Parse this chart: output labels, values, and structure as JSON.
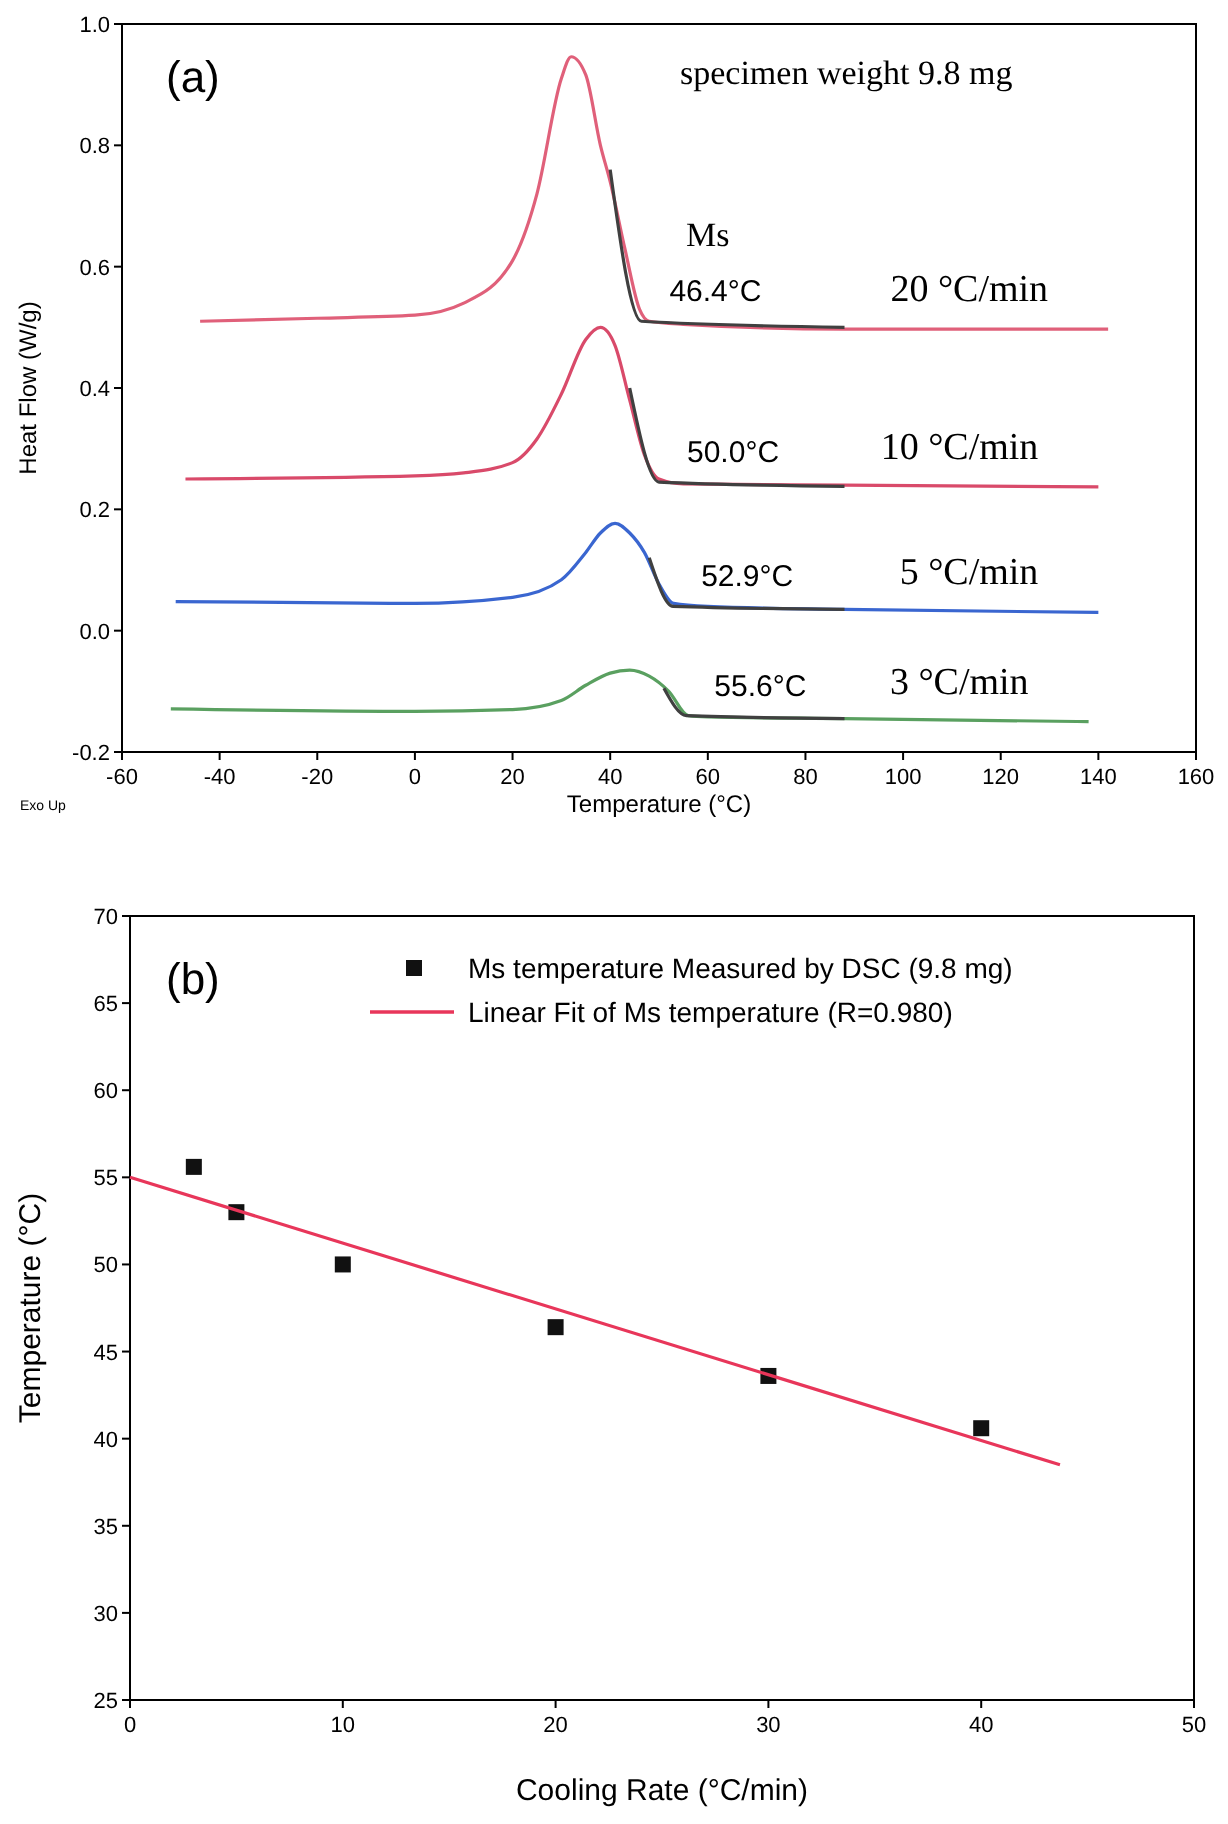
{
  "chart_data": [
    {
      "type": "line",
      "xlabel": "Temperature (°C)",
      "ylabel": "Heat Flow (W/g)",
      "xlim": [
        -60,
        160
      ],
      "xticks": [
        -60,
        -40,
        -20,
        0,
        20,
        40,
        60,
        80,
        100,
        120,
        140,
        160
      ],
      "ylim": [
        -0.2,
        1.0
      ],
      "yticks": [
        {
          "value": -0.2,
          "label": "-0.2"
        },
        {
          "value": 0,
          "label": "0.0"
        },
        {
          "value": 0.2,
          "label": "0.2"
        },
        {
          "value": 0.4,
          "label": "0.4"
        },
        {
          "value": 0.6,
          "label": "0.6"
        },
        {
          "value": 0.8,
          "label": "0.8"
        },
        {
          "value": 1.0,
          "label": "1.0"
        }
      ],
      "grid": false,
      "legend": false,
      "line_style": "solid",
      "series": [
        {
          "name": "20 °C/min",
          "color": "#e0607a",
          "x": [
            -44,
            -20,
            0,
            10,
            20,
            25,
            30,
            32,
            35,
            38,
            40,
            43,
            46,
            48,
            55,
            88,
            142
          ],
          "values": [
            0.51,
            0.515,
            0.52,
            0.54,
            0.61,
            0.72,
            0.91,
            0.946,
            0.916,
            0.8,
            0.74,
            0.63,
            0.53,
            0.51,
            0.505,
            0.497,
            0.497
          ]
        },
        {
          "name": "10 °C/min",
          "color": "#d94a6a",
          "x": [
            -47,
            0,
            10,
            20,
            25,
            30,
            35,
            38,
            41,
            44,
            47,
            50,
            55,
            88,
            140
          ],
          "values": [
            0.25,
            0.255,
            0.26,
            0.277,
            0.316,
            0.39,
            0.48,
            0.5,
            0.47,
            0.38,
            0.29,
            0.25,
            0.242,
            0.24,
            0.237
          ]
        },
        {
          "name": "5 °C/min",
          "color": "#3a66d0",
          "x": [
            -49,
            0,
            20,
            30,
            35,
            38,
            41,
            44,
            47,
            50,
            53,
            60,
            88,
            140
          ],
          "values": [
            0.048,
            0.045,
            0.055,
            0.084,
            0.129,
            0.161,
            0.177,
            0.161,
            0.129,
            0.077,
            0.045,
            0.04,
            0.035,
            0.03
          ]
        },
        {
          "name": "3 °C/min",
          "color": "#5aa060",
          "x": [
            -50,
            0,
            20,
            30,
            35,
            40,
            44,
            48,
            52,
            56,
            60,
            88,
            138
          ],
          "values": [
            -0.129,
            -0.133,
            -0.13,
            -0.115,
            -0.09,
            -0.07,
            -0.065,
            -0.075,
            -0.1,
            -0.14,
            -0.142,
            -0.145,
            -0.15
          ]
        },
        {
          "color": "#404040",
          "x": [
            40,
            46.4,
            88
          ],
          "values": [
            0.76,
            0.51,
            0.5
          ]
        },
        {
          "color": "#404040",
          "x": [
            44,
            50,
            88
          ],
          "values": [
            0.4,
            0.245,
            0.238
          ]
        },
        {
          "color": "#404040",
          "x": [
            48,
            52.9,
            88
          ],
          "values": [
            0.12,
            0.04,
            0.035
          ]
        },
        {
          "color": "#404040",
          "x": [
            51,
            55.6,
            88
          ],
          "values": [
            -0.095,
            -0.14,
            -0.145
          ]
        }
      ],
      "annotations": [
        "(a)",
        "specimen weight 9.8 mg",
        "Ms",
        "Exo Up",
        {
          "text": "46.4°C",
          "x": 46.4,
          "y": 0.51
        },
        {
          "text": "50.0°C",
          "x": 50.0,
          "y": 0.245
        },
        {
          "text": "52.9°C",
          "x": 52.9,
          "y": 0.04
        },
        {
          "text": "55.6°C",
          "x": 55.6,
          "y": -0.14
        }
      ]
    },
    {
      "type": "scatter",
      "xlabel": "Cooling Rate (°C/min)",
      "ylabel": "Temperature (°C)",
      "xlim": [
        0,
        50
      ],
      "xticks": [
        0,
        10,
        20,
        30,
        40,
        50
      ],
      "ylim": [
        25,
        70
      ],
      "yticks": [
        25,
        30,
        35,
        40,
        45,
        50,
        55,
        60,
        65,
        70
      ],
      "grid": false,
      "legend": "top right",
      "series": [
        {
          "name": "Ms temperature Measured by DSC (9.8 mg)",
          "marker": "square",
          "color": "#111111",
          "x": [
            3,
            5,
            10,
            20,
            30,
            40
          ],
          "values": [
            55.6,
            53.0,
            50.0,
            46.4,
            43.6,
            40.6
          ]
        },
        {
          "name": "Linear Fit of Ms temperature (R=0.980)",
          "type": "line",
          "color": "#e8365a",
          "line_style": "solid",
          "x": [
            0,
            43.7
          ],
          "values": [
            55.0,
            38.5
          ]
        }
      ],
      "annotations": [
        "(b)"
      ]
    }
  ]
}
